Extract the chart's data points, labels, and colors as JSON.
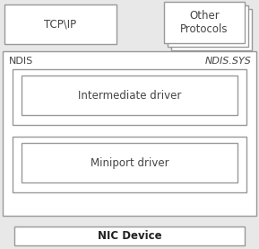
{
  "fig_bg": "#e8e8e8",
  "box_bg": "#ffffff",
  "border_color": "#999999",
  "text_color": "#444444",
  "text_color_dark": "#222222",
  "tcpip_label": "TCP\\IP",
  "other_proto_label": "Other\nProtocols",
  "ndis_label": "NDIS",
  "ndis_sys_label": "NDIS.SYS",
  "intermediate_label": "Intermediate driver",
  "miniport_label": "Miniport driver",
  "nic_label": "NIC Device",
  "fig_width": 2.89,
  "fig_height": 2.77,
  "dpi": 100
}
